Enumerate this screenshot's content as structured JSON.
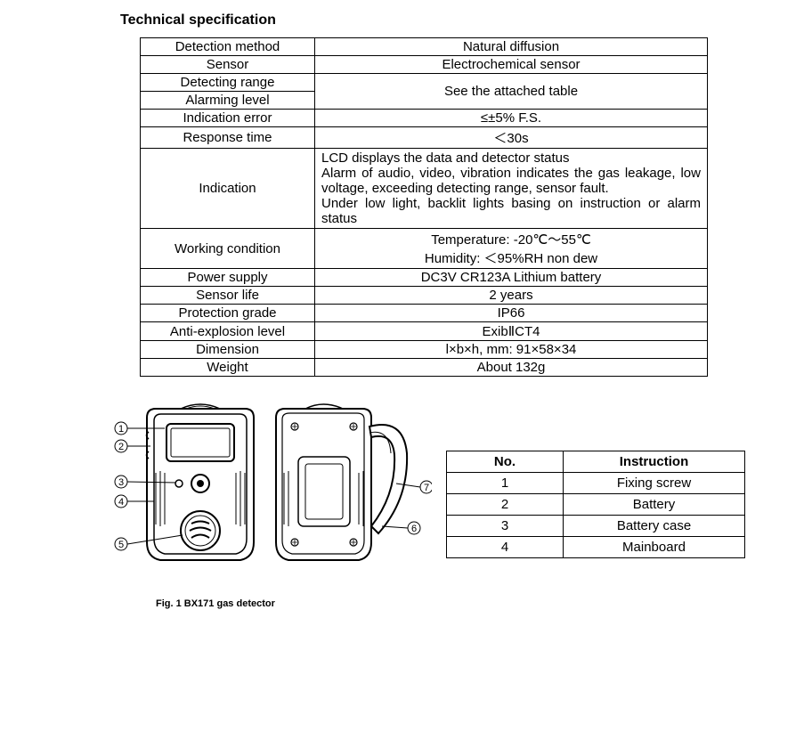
{
  "title": "Technical specification",
  "spec_table": {
    "rows": [
      {
        "label": "Detection method",
        "value": "Natural diffusion"
      },
      {
        "label": "Sensor",
        "value": "Electrochemical sensor"
      },
      {
        "label": "Detecting range",
        "value": "See the attached table",
        "merge_with_next": true
      },
      {
        "label": "Alarming level"
      },
      {
        "label": "Indication error",
        "value": "≤±5% F.S."
      },
      {
        "label": "Response time",
        "value": "＜30s"
      },
      {
        "label": "Indication",
        "value": "LCD displays the data and detector status\nAlarm of audio, video, vibration indicates the gas leakage, low voltage, exceeding detecting range, sensor fault.\nUnder low light, backlit lights basing on instruction or alarm status",
        "justify": true
      },
      {
        "label": "Working condition",
        "value": "Temperature: -20℃～55℃\nHumidity: ＜95%RH non dew"
      },
      {
        "label": "Power supply",
        "value": "DC3V CR123A Lithium battery"
      },
      {
        "label": "Sensor life",
        "value": "2 years"
      },
      {
        "label": "Protection grade",
        "value": "IP66"
      },
      {
        "label": "Anti-explosion level",
        "value": "ExibⅡCT4"
      },
      {
        "label": "Dimension",
        "value": "l×b×h, mm: 91×58×34"
      },
      {
        "label": "Weight",
        "value": "About 132g"
      }
    ],
    "colors": {
      "border": "#000000",
      "text": "#000000",
      "background": "#ffffff"
    },
    "font_size": 15,
    "label_col_width": 185
  },
  "figure": {
    "caption": "Fig. 1 BX171 gas detector",
    "callouts_left": [
      "1",
      "2",
      "3",
      "4",
      "5"
    ],
    "callouts_right": [
      "7",
      "6"
    ]
  },
  "parts_table": {
    "headers": [
      "No.",
      "Instruction"
    ],
    "rows": [
      [
        "1",
        "Fixing screw"
      ],
      [
        "2",
        "Battery"
      ],
      [
        "3",
        "Battery case"
      ],
      [
        "4",
        "Mainboard"
      ]
    ]
  },
  "colors": {
    "text": "#000000",
    "background": "#ffffff",
    "border": "#000000"
  }
}
